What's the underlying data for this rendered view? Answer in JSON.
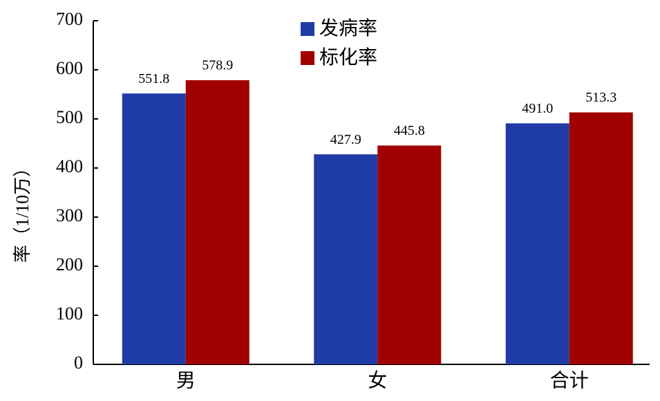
{
  "chart_data": {
    "type": "bar",
    "y_label": "率（1/10万）",
    "categories": [
      "男",
      "女",
      "合计"
    ],
    "series": [
      {
        "name": "发病率",
        "color": "#1f3ca6",
        "values": [
          551.8,
          427.9,
          491.0
        ],
        "value_labels": [
          "551.8",
          "427.9",
          "491.0"
        ]
      },
      {
        "name": "标化率",
        "color": "#a00000",
        "values": [
          578.9,
          445.8,
          513.3
        ],
        "value_labels": [
          "578.9",
          "445.8",
          "513.3"
        ]
      }
    ],
    "ylim": [
      0,
      700
    ],
    "yticks": [
      0,
      100,
      200,
      300,
      400,
      500,
      600,
      700
    ],
    "grid": false
  }
}
